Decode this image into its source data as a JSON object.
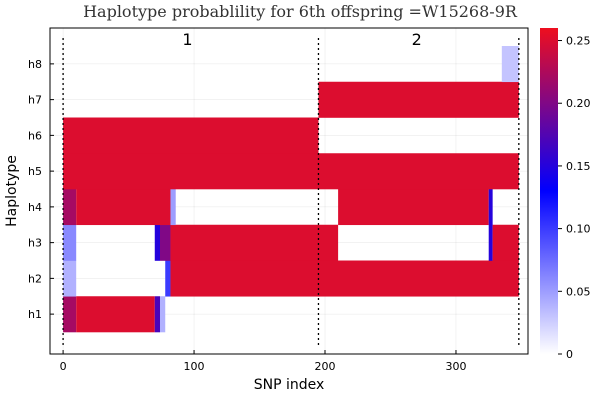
{
  "chart_data": {
    "type": "heatmap",
    "title": "Haplotype probablility for 6th offspring =W15268-9R",
    "xlabel": "SNP index",
    "ylabel": "Haplotype",
    "xlim": [
      -10,
      355
    ],
    "x_ticks": [
      0,
      100,
      200,
      300
    ],
    "y_categories": [
      "h1",
      "h2",
      "h3",
      "h4",
      "h5",
      "h6",
      "h7",
      "h8"
    ],
    "grid": true,
    "colorbar": {
      "range": [
        0,
        0.26
      ],
      "ticks": [
        0,
        0.05,
        0.1,
        0.15,
        0.2,
        0.25
      ],
      "tick_labels": [
        "0",
        "0.05",
        "0.10",
        "0.15",
        "0.20",
        "0.25"
      ],
      "colors": [
        "#ffffff",
        "#0000ff",
        "#ee0e1e"
      ]
    },
    "segment_boundaries": [
      0,
      195,
      348
    ],
    "segment_labels": [
      {
        "label": "1",
        "x": 95
      },
      {
        "label": "2",
        "x": 270
      }
    ],
    "cells": [
      {
        "row": "h1",
        "x0": 0,
        "x1": 10,
        "value": 0.22
      },
      {
        "row": "h1",
        "x0": 10,
        "x1": 70,
        "value": 0.25
      },
      {
        "row": "h1",
        "x0": 70,
        "x1": 74,
        "value": 0.17
      },
      {
        "row": "h1",
        "x0": 74,
        "x1": 78,
        "value": 0.04
      },
      {
        "row": "h2",
        "x0": 0,
        "x1": 10,
        "value": 0.04
      },
      {
        "row": "h2",
        "x0": 10,
        "x1": 78,
        "value": 0.0
      },
      {
        "row": "h2",
        "x0": 78,
        "x1": 82,
        "value": 0.1
      },
      {
        "row": "h2",
        "x0": 82,
        "x1": 348,
        "value": 0.25
      },
      {
        "row": "h3",
        "x0": 0,
        "x1": 10,
        "value": 0.06
      },
      {
        "row": "h3",
        "x0": 10,
        "x1": 70,
        "value": 0.0
      },
      {
        "row": "h3",
        "x0": 70,
        "x1": 74,
        "value": 0.15
      },
      {
        "row": "h3",
        "x0": 74,
        "x1": 82,
        "value": 0.2
      },
      {
        "row": "h3",
        "x0": 82,
        "x1": 210,
        "value": 0.25
      },
      {
        "row": "h3",
        "x0": 210,
        "x1": 325,
        "value": 0.0
      },
      {
        "row": "h3",
        "x0": 325,
        "x1": 328,
        "value": 0.15
      },
      {
        "row": "h3",
        "x0": 328,
        "x1": 348,
        "value": 0.25
      },
      {
        "row": "h4",
        "x0": 0,
        "x1": 10,
        "value": 0.22
      },
      {
        "row": "h4",
        "x0": 10,
        "x1": 82,
        "value": 0.25
      },
      {
        "row": "h4",
        "x0": 82,
        "x1": 86,
        "value": 0.05
      },
      {
        "row": "h4",
        "x0": 86,
        "x1": 210,
        "value": 0.0
      },
      {
        "row": "h4",
        "x0": 210,
        "x1": 325,
        "value": 0.25
      },
      {
        "row": "h4",
        "x0": 325,
        "x1": 328,
        "value": 0.15
      },
      {
        "row": "h4",
        "x0": 328,
        "x1": 348,
        "value": 0.0
      },
      {
        "row": "h5",
        "x0": 0,
        "x1": 348,
        "value": 0.25
      },
      {
        "row": "h6",
        "x0": 0,
        "x1": 195,
        "value": 0.25
      },
      {
        "row": "h6",
        "x0": 195,
        "x1": 348,
        "value": 0.0
      },
      {
        "row": "h7",
        "x0": 0,
        "x1": 195,
        "value": 0.0
      },
      {
        "row": "h7",
        "x0": 195,
        "x1": 348,
        "value": 0.25
      },
      {
        "row": "h8",
        "x0": 0,
        "x1": 335,
        "value": 0.0
      },
      {
        "row": "h8",
        "x0": 335,
        "x1": 348,
        "value": 0.03
      }
    ]
  }
}
